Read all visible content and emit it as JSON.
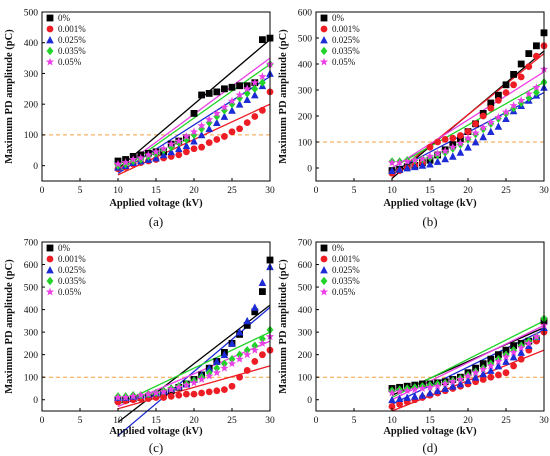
{
  "colors": {
    "0%": "#000000",
    "0.001%": "#ee1c25",
    "0.025%": "#1c2bd6",
    "0.035%": "#22d32a",
    "0.05%": "#ec3fe6",
    "threshold": "#f5a040"
  },
  "chart_data": [
    {
      "type": "scatter",
      "caption": "(a)",
      "xlabel": "Applied voltage (kV)",
      "ylabel": "Maximum PD amplitude (pC)",
      "xlim": [
        0,
        30
      ],
      "ylim": [
        -50,
        500
      ],
      "xticks": [
        0,
        5,
        10,
        15,
        20,
        25,
        30
      ],
      "yticks": [
        0,
        100,
        200,
        300,
        400,
        500
      ],
      "threshold": 100,
      "legend": "top-left",
      "x": [
        10,
        11,
        12,
        13,
        14,
        15,
        16,
        17,
        18,
        19,
        20,
        21,
        22,
        23,
        24,
        25,
        26,
        27,
        28,
        29,
        30
      ],
      "series": [
        {
          "name": "0%",
          "marker": "square",
          "values": [
            15,
            20,
            30,
            35,
            40,
            45,
            45,
            70,
            80,
            90,
            170,
            230,
            235,
            240,
            250,
            255,
            260,
            260,
            270,
            410,
            415
          ],
          "fit": [
            -10,
            410
          ]
        },
        {
          "name": "0.001%",
          "marker": "circle",
          "values": [
            -10,
            -5,
            5,
            10,
            15,
            20,
            25,
            30,
            35,
            45,
            55,
            60,
            75,
            85,
            95,
            110,
            120,
            140,
            160,
            180,
            240
          ],
          "fit": [
            -30,
            200
          ]
        },
        {
          "name": "0.025%",
          "marker": "triangle",
          "values": [
            -5,
            0,
            10,
            15,
            20,
            25,
            35,
            45,
            55,
            65,
            80,
            100,
            120,
            140,
            160,
            180,
            200,
            215,
            230,
            260,
            300
          ],
          "fit": [
            -25,
            290
          ]
        },
        {
          "name": "0.035%",
          "marker": "diamond",
          "values": [
            0,
            5,
            15,
            20,
            30,
            40,
            50,
            60,
            75,
            85,
            100,
            120,
            140,
            160,
            180,
            200,
            220,
            235,
            250,
            270,
            330
          ],
          "fit": [
            -20,
            330
          ]
        },
        {
          "name": "0.05%",
          "marker": "star",
          "values": [
            5,
            10,
            20,
            25,
            35,
            45,
            55,
            70,
            80,
            95,
            110,
            130,
            150,
            170,
            190,
            210,
            230,
            250,
            270,
            290,
            330
          ],
          "fit": [
            -15,
            350
          ]
        }
      ]
    },
    {
      "type": "scatter",
      "caption": "(b)",
      "xlabel": "Applied voltage (kV)",
      "ylabel": "Maximum PD amplitude (pC)",
      "xlim": [
        0,
        30
      ],
      "ylim": [
        -50,
        600
      ],
      "xticks": [
        0,
        5,
        10,
        15,
        20,
        25,
        30
      ],
      "yticks": [
        0,
        100,
        200,
        300,
        400,
        500,
        600
      ],
      "threshold": 100,
      "legend": "top-left",
      "x": [
        10,
        11,
        12,
        13,
        14,
        15,
        16,
        17,
        18,
        19,
        20,
        21,
        22,
        23,
        24,
        25,
        26,
        27,
        28,
        29,
        30
      ],
      "series": [
        {
          "name": "0%",
          "marker": "square",
          "values": [
            -10,
            -5,
            5,
            10,
            20,
            30,
            50,
            70,
            90,
            110,
            140,
            170,
            210,
            250,
            280,
            320,
            360,
            400,
            440,
            470,
            520
          ],
          "fit": [
            -40,
            450
          ]
        },
        {
          "name": "0.001%",
          "marker": "circle",
          "values": [
            -20,
            -10,
            0,
            10,
            20,
            80,
            100,
            110,
            115,
            125,
            140,
            170,
            200,
            230,
            260,
            290,
            320,
            350,
            390,
            430,
            470
          ],
          "fit": [
            -30,
            440
          ]
        },
        {
          "name": "0.025%",
          "marker": "triangle",
          "values": [
            -10,
            -5,
            0,
            5,
            10,
            15,
            25,
            35,
            45,
            60,
            80,
            100,
            120,
            140,
            160,
            190,
            220,
            240,
            260,
            280,
            310
          ],
          "fit": [
            -15,
            290
          ]
        },
        {
          "name": "0.035%",
          "marker": "diamond",
          "values": [
            25,
            25,
            30,
            30,
            35,
            40,
            50,
            60,
            75,
            90,
            110,
            130,
            150,
            170,
            190,
            210,
            230,
            250,
            270,
            290,
            330
          ],
          "fit": [
            0,
            330
          ]
        },
        {
          "name": "0.05%",
          "marker": "star",
          "values": [
            20,
            20,
            25,
            30,
            35,
            45,
            55,
            65,
            80,
            95,
            115,
            135,
            155,
            175,
            195,
            215,
            240,
            260,
            285,
            310,
            380
          ],
          "fit": [
            0,
            370
          ]
        }
      ]
    },
    {
      "type": "scatter",
      "caption": "(c)",
      "xlabel": "Applied voltage (kV)",
      "ylabel": "Maximum PD amplitude (pC)",
      "xlim": [
        0,
        30
      ],
      "ylim": [
        -50,
        700
      ],
      "xticks": [
        0,
        5,
        10,
        15,
        20,
        25,
        30
      ],
      "yticks": [
        0,
        100,
        200,
        300,
        400,
        500,
        600,
        700
      ],
      "threshold": 100,
      "legend": "top-left",
      "x": [
        10,
        11,
        12,
        13,
        14,
        15,
        16,
        17,
        18,
        19,
        20,
        21,
        22,
        23,
        24,
        25,
        26,
        27,
        28,
        29,
        30
      ],
      "series": [
        {
          "name": "0%",
          "marker": "square",
          "values": [
            0,
            0,
            5,
            10,
            15,
            20,
            30,
            40,
            55,
            70,
            90,
            110,
            140,
            170,
            210,
            250,
            290,
            330,
            390,
            480,
            620
          ],
          "fit": [
            -100,
            420
          ]
        },
        {
          "name": "0.001%",
          "marker": "circle",
          "values": [
            -10,
            -5,
            0,
            5,
            5,
            10,
            10,
            15,
            20,
            25,
            25,
            30,
            35,
            40,
            45,
            60,
            100,
            130,
            170,
            200,
            220
          ],
          "fit": [
            -40,
            150
          ]
        },
        {
          "name": "0.025%",
          "marker": "triangle",
          "values": [
            10,
            10,
            15,
            20,
            25,
            30,
            40,
            50,
            60,
            70,
            90,
            110,
            140,
            170,
            200,
            250,
            300,
            350,
            410,
            520,
            590
          ],
          "fit": [
            -160,
            410
          ]
        },
        {
          "name": "0.035%",
          "marker": "diamond",
          "values": [
            15,
            15,
            20,
            20,
            25,
            30,
            40,
            50,
            60,
            70,
            85,
            100,
            120,
            140,
            160,
            180,
            200,
            220,
            240,
            270,
            310
          ],
          "fit": [
            -20,
            300
          ]
        },
        {
          "name": "0.05%",
          "marker": "star",
          "values": [
            10,
            10,
            15,
            20,
            25,
            30,
            35,
            45,
            55,
            65,
            75,
            90,
            105,
            120,
            140,
            160,
            180,
            200,
            220,
            250,
            280
          ],
          "fit": [
            -30,
            260
          ]
        }
      ]
    },
    {
      "type": "scatter",
      "caption": "(d)",
      "xlabel": "Applied voltage (kV)",
      "ylabel": "Maximum PD amplitude (pC)",
      "xlim": [
        0,
        30
      ],
      "ylim": [
        -50,
        700
      ],
      "xticks": [
        0,
        5,
        10,
        15,
        20,
        25,
        30
      ],
      "yticks": [
        0,
        100,
        200,
        300,
        400,
        500,
        600,
        700
      ],
      "threshold": 100,
      "legend": "top-left",
      "x": [
        10,
        11,
        12,
        13,
        14,
        15,
        16,
        17,
        18,
        19,
        20,
        21,
        22,
        23,
        24,
        25,
        26,
        27,
        28,
        29,
        30
      ],
      "series": [
        {
          "name": "0%",
          "marker": "square",
          "values": [
            50,
            55,
            60,
            65,
            70,
            70,
            75,
            80,
            90,
            100,
            120,
            140,
            160,
            180,
            200,
            220,
            240,
            250,
            260,
            270,
            350
          ],
          "fit": [
            20,
            320
          ]
        },
        {
          "name": "0.001%",
          "marker": "circle",
          "values": [
            -30,
            -20,
            -10,
            0,
            10,
            20,
            30,
            40,
            50,
            60,
            70,
            80,
            90,
            100,
            110,
            120,
            150,
            180,
            220,
            260,
            300
          ],
          "fit": [
            -50,
            220
          ]
        },
        {
          "name": "0.025%",
          "marker": "triangle",
          "values": [
            0,
            5,
            10,
            15,
            20,
            30,
            40,
            50,
            60,
            70,
            85,
            100,
            115,
            130,
            150,
            170,
            190,
            210,
            240,
            280,
            320
          ],
          "fit": [
            -20,
            310
          ]
        },
        {
          "name": "0.035%",
          "marker": "diamond",
          "values": [
            40,
            45,
            50,
            55,
            60,
            65,
            70,
            75,
            85,
            95,
            110,
            125,
            140,
            160,
            180,
            200,
            220,
            240,
            260,
            280,
            360
          ],
          "fit": [
            10,
            350
          ]
        },
        {
          "name": "0.05%",
          "marker": "star",
          "values": [
            30,
            35,
            40,
            45,
            50,
            55,
            60,
            70,
            80,
            90,
            105,
            120,
            135,
            150,
            170,
            190,
            210,
            230,
            250,
            280,
            330
          ],
          "fit": [
            0,
            330
          ]
        }
      ]
    }
  ]
}
